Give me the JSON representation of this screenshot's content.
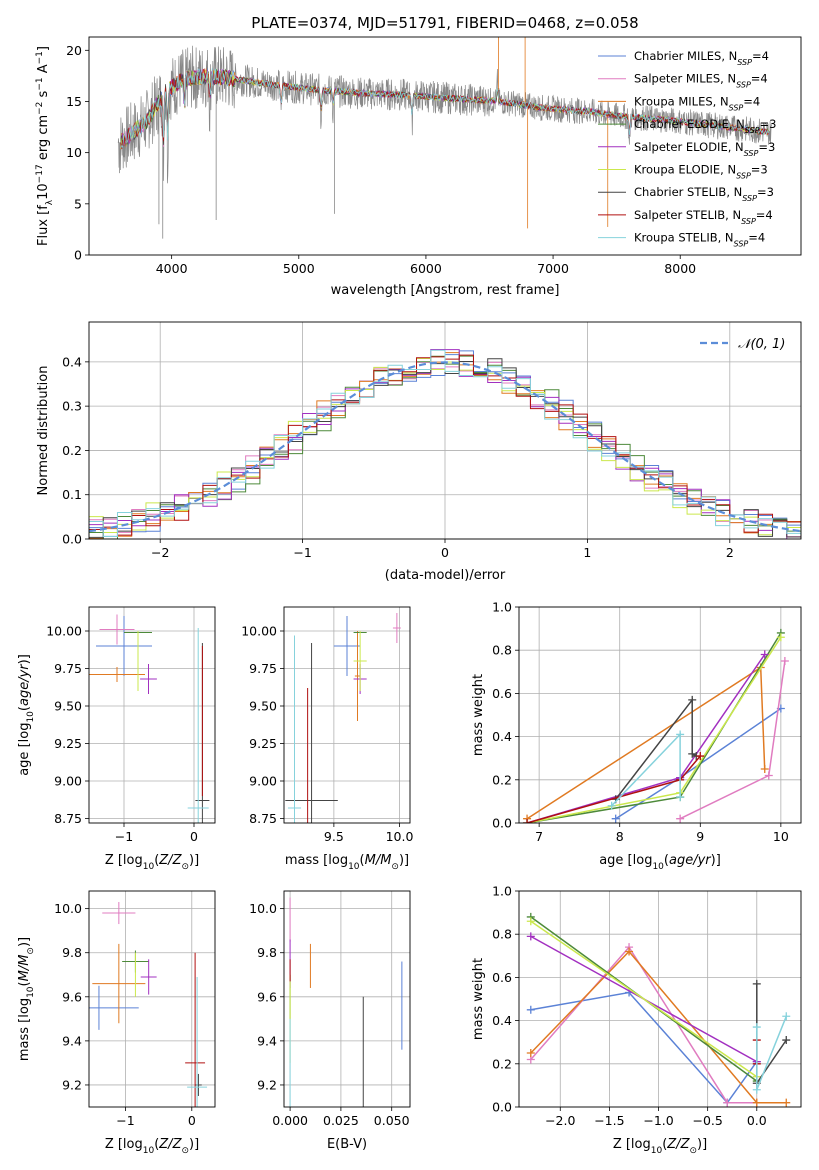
{
  "colors": {
    "cm": "#5b82d6",
    "sm": "#e07cc0",
    "km": "#e07a22",
    "ce": "#4d8a3a",
    "se": "#a230c0",
    "ke": "#cbe84c",
    "cs": "#444444",
    "ss": "#b01010",
    "ks": "#86d2dc",
    "data": "#888888",
    "grid": "#b0b0b0",
    "normal": "#5b8dd8"
  },
  "legend": [
    {
      "key": "cm",
      "label": "Chabrier MILES, N",
      "sub": "SSP",
      "suffix": "=4"
    },
    {
      "key": "sm",
      "label": "Salpeter MILES, N",
      "sub": "SSP",
      "suffix": "=4"
    },
    {
      "key": "km",
      "label": "Kroupa MILES, N",
      "sub": "SSP",
      "suffix": "=4"
    },
    {
      "key": "ce",
      "label": "Chabrier ELODIE, N",
      "sub": "SSP",
      "suffix": "=3"
    },
    {
      "key": "se",
      "label": "Salpeter ELODIE, N",
      "sub": "SSP",
      "suffix": "=3"
    },
    {
      "key": "ke",
      "label": "Kroupa ELODIE, N",
      "sub": "SSP",
      "suffix": "=3"
    },
    {
      "key": "cs",
      "label": "Chabrier STELIB, N",
      "sub": "SSP",
      "suffix": "=3"
    },
    {
      "key": "ss",
      "label": "Salpeter STELIB, N",
      "sub": "SSP",
      "suffix": "=4"
    },
    {
      "key": "ks",
      "label": "Kroupa STELIB, N",
      "sub": "SSP",
      "suffix": "=4"
    }
  ],
  "chart_data": [
    {
      "id": "spectrum",
      "type": "line",
      "title": "PLATE=0374, MJD=51791, FIBERID=0468, z=0.058",
      "xlabel": "wavelength [Angstrom, rest frame]",
      "ylabel_parts": [
        "Flux [f",
        "λ",
        "10",
        "−17",
        " erg cm",
        "−2",
        " s",
        "−1",
        " A",
        "−1",
        "]"
      ],
      "xlim": [
        3350,
        8950
      ],
      "ylim": [
        0,
        21.3
      ],
      "xticks": [
        4000,
        5000,
        6000,
        7000,
        8000
      ],
      "yticks": [
        0,
        5,
        10,
        15,
        20
      ],
      "continuum_x": [
        3600,
        3800,
        3950,
        4100,
        4300,
        4500,
        4700,
        4900,
        5100,
        5300,
        5500,
        5700,
        5900,
        6100,
        6300,
        6500,
        6700,
        6900,
        7100,
        7300,
        7500,
        7700,
        7900,
        8100,
        8300,
        8500,
        8700
      ],
      "continuum_y": [
        11,
        13,
        16,
        17.2,
        17.5,
        17.2,
        16.8,
        16.5,
        16.2,
        16.0,
        15.8,
        15.7,
        15.6,
        15.4,
        15.2,
        15.1,
        14.8,
        14.4,
        14.2,
        14.0,
        13.6,
        13.4,
        13.2,
        12.9,
        12.6,
        12.3,
        12.0
      ]
    },
    {
      "id": "residuals",
      "type": "step",
      "xlabel": "(data-model)/error",
      "ylabel": "Normed distribution",
      "xlim": [
        -2.5,
        2.5
      ],
      "ylim": [
        0,
        0.49
      ],
      "xticks": [
        -2,
        -1,
        0,
        1,
        2
      ],
      "yticks": [
        0.0,
        0.1,
        0.2,
        0.3,
        0.4
      ],
      "normal_label": "𝒩(0, 1)"
    },
    {
      "id": "age-vs-Z",
      "type": "errorbar",
      "xlabel": "Z [log10(Z/Z⊙)]",
      "ylabel": "age  [log10(age/yr)]",
      "xlim": [
        -1.5,
        0.3
      ],
      "ylim": [
        8.72,
        10.16
      ],
      "xticks": [
        -1,
        0
      ],
      "yticks": [
        8.75,
        9.0,
        9.25,
        9.5,
        9.75,
        10.0
      ],
      "points": [
        {
          "key": "cm",
          "x": -1.0,
          "y": 9.9,
          "xerr": 0.4,
          "yerr": 0.2
        },
        {
          "key": "sm",
          "x": -1.1,
          "y": 10.01,
          "xerr": 0.25,
          "yerr": 0.1
        },
        {
          "key": "km",
          "x": -1.1,
          "y": 9.71,
          "xerr": 0.4,
          "yerr": 0.05
        },
        {
          "key": "ce",
          "x": -0.8,
          "y": 9.99,
          "xerr": 0.2,
          "yerr": 0.0
        },
        {
          "key": "se",
          "x": -0.65,
          "y": 9.68,
          "xerr": 0.12,
          "yerr": 0.1
        },
        {
          "key": "ke",
          "x": -0.8,
          "y": 9.8,
          "xerr": 0.0,
          "yerr": 0.2
        },
        {
          "key": "cs",
          "x": 0.12,
          "y": 8.87,
          "xerr": 0.1,
          "yerr": 1.05
        },
        {
          "key": "ss",
          "x": 0.12,
          "y": 9.4,
          "xerr": 0.0,
          "yerr": 0.5
        },
        {
          "key": "ks",
          "x": 0.06,
          "y": 8.82,
          "xerr": 0.15,
          "yerr": 1.2
        }
      ]
    },
    {
      "id": "age-vs-mass",
      "type": "errorbar",
      "xlabel": "mass [log10(M/M⊙)]",
      "ylabel": "",
      "xlim": [
        9.12,
        10.08
      ],
      "ylim": [
        8.72,
        10.16
      ],
      "xticks": [
        9.5,
        10.0
      ],
      "yticks": [
        8.75,
        9.0,
        9.25,
        9.5,
        9.75,
        10.0
      ],
      "points": [
        {
          "key": "cm",
          "x": 9.6,
          "y": 9.9,
          "xerr": 0.1,
          "yerr": 0.2
        },
        {
          "key": "sm",
          "x": 9.98,
          "y": 10.02,
          "xerr": 0.03,
          "yerr": 0.1
        },
        {
          "key": "km",
          "x": 9.68,
          "y": 9.7,
          "xerr": 0.02,
          "yerr": 0.3
        },
        {
          "key": "ce",
          "x": 9.7,
          "y": 9.99,
          "xerr": 0.05,
          "yerr": 0.0
        },
        {
          "key": "se",
          "x": 9.7,
          "y": 9.68,
          "xerr": 0.05,
          "yerr": 0.1
        },
        {
          "key": "ke",
          "x": 9.7,
          "y": 9.8,
          "xerr": 0.05,
          "yerr": 0.2
        },
        {
          "key": "cs",
          "x": 9.33,
          "y": 8.87,
          "xerr": 0.2,
          "yerr": 1.05
        },
        {
          "key": "ss",
          "x": 9.3,
          "y": 8.82,
          "xerr": 0.0,
          "yerr": 0.8
        },
        {
          "key": "ks",
          "x": 9.2,
          "y": 8.82,
          "xerr": 0.05,
          "yerr": 1.15
        }
      ]
    },
    {
      "id": "massweight-vs-age",
      "type": "line",
      "xlabel": "age  [log10(age/yr)]",
      "ylabel": "mass weight",
      "xlim": [
        6.75,
        10.25
      ],
      "ylim": [
        0,
        1.0
      ],
      "xticks": [
        7,
        8,
        9,
        10
      ],
      "yticks": [
        0.0,
        0.2,
        0.4,
        0.6,
        0.8,
        1.0
      ],
      "series": [
        {
          "key": "cm",
          "x": [
            7.95,
            8.75,
            10.0
          ],
          "y": [
            0.02,
            0.21,
            0.53
          ]
        },
        {
          "key": "sm",
          "x": [
            8.75,
            9.85,
            10.05
          ],
          "y": [
            0.02,
            0.22,
            0.75
          ]
        },
        {
          "key": "km",
          "x": [
            6.85,
            9.75,
            9.8
          ],
          "y": [
            0.02,
            0.72,
            0.25
          ]
        },
        {
          "key": "ce",
          "x": [
            6.85,
            8.75,
            10.0
          ],
          "y": [
            0.0,
            0.12,
            0.88
          ]
        },
        {
          "key": "se",
          "x": [
            6.85,
            8.75,
            9.8
          ],
          "y": [
            0.0,
            0.21,
            0.78
          ]
        },
        {
          "key": "ke",
          "x": [
            6.85,
            8.75,
            10.0
          ],
          "y": [
            0.0,
            0.14,
            0.86
          ]
        },
        {
          "key": "cs",
          "x": [
            7.95,
            8.9,
            8.9,
            8.95
          ],
          "y": [
            0.11,
            0.57,
            0.32,
            0.31
          ]
        },
        {
          "key": "ss",
          "x": [
            6.85,
            8.75,
            9.0
          ],
          "y": [
            0.0,
            0.2,
            0.31
          ]
        },
        {
          "key": "ks",
          "x": [
            7.9,
            8.75,
            8.75
          ],
          "y": [
            0.08,
            0.41,
            0.12
          ]
        }
      ]
    },
    {
      "id": "mass-vs-Z",
      "type": "errorbar",
      "xlabel": "Z [log10(Z/Z⊙)]",
      "ylabel": "mass [log10(M/M⊙)]",
      "xlim": [
        -1.55,
        0.35
      ],
      "ylim": [
        9.1,
        10.08
      ],
      "xticks": [
        -1,
        0
      ],
      "yticks": [
        9.2,
        9.4,
        9.6,
        9.8,
        10.0
      ],
      "points": [
        {
          "key": "cm",
          "x": -1.4,
          "y": 9.55,
          "xerr": 0.6,
          "yerr": 0.1
        },
        {
          "key": "sm",
          "x": -1.1,
          "y": 9.98,
          "xerr": 0.25,
          "yerr": 0.05
        },
        {
          "key": "km",
          "x": -1.1,
          "y": 9.66,
          "xerr": 0.4,
          "yerr": 0.18
        },
        {
          "key": "ce",
          "x": -0.85,
          "y": 9.76,
          "xerr": 0.2,
          "yerr": 0.05
        },
        {
          "key": "se",
          "x": -0.65,
          "y": 9.69,
          "xerr": 0.12,
          "yerr": 0.08
        },
        {
          "key": "ke",
          "x": -0.85,
          "y": 9.7,
          "xerr": 0.0,
          "yerr": 0.1
        },
        {
          "key": "cs",
          "x": 0.1,
          "y": 9.2,
          "xerr": 0.05,
          "yerr": 0.05
        },
        {
          "key": "ss",
          "x": 0.05,
          "y": 9.3,
          "xerr": 0.15,
          "yerr": 0.5
        },
        {
          "key": "ks",
          "x": 0.08,
          "y": 9.19,
          "xerr": 0.15,
          "yerr": 0.5
        }
      ]
    },
    {
      "id": "mass-vs-EBV",
      "type": "errorbar",
      "xlabel": "E(B-V)",
      "ylabel": "",
      "xlim": [
        -0.003,
        0.059
      ],
      "ylim": [
        9.1,
        10.08
      ],
      "xticks": [
        0.0,
        0.025,
        0.05
      ],
      "yticks": [
        9.2,
        9.4,
        9.6,
        9.8,
        10.0
      ],
      "points": [
        {
          "key": "cm",
          "x": 0.055,
          "y": 9.56,
          "xerr": 0,
          "yerr": 0.2
        },
        {
          "key": "sm",
          "x": 0.0,
          "y": 9.95,
          "xerr": 0,
          "yerr": 0.1
        },
        {
          "key": "km",
          "x": 0.01,
          "y": 9.74,
          "xerr": 0,
          "yerr": 0.1
        },
        {
          "key": "ce",
          "x": 0.0,
          "y": 9.6,
          "xerr": 0,
          "yerr": 0.1
        },
        {
          "key": "se",
          "x": 0.0,
          "y": 9.75,
          "xerr": 0,
          "yerr": 0.11
        },
        {
          "key": "ke",
          "x": 0.0,
          "y": 9.5,
          "xerr": 0,
          "yerr": 0.2
        },
        {
          "key": "cs",
          "x": 0.036,
          "y": 9.3,
          "xerr": 0,
          "yerr": 0.3
        },
        {
          "key": "ss",
          "x": 0.0,
          "y": 9.72,
          "xerr": 0,
          "yerr": 0.05
        },
        {
          "key": "ks",
          "x": 0.0,
          "y": 9.2,
          "xerr": 0,
          "yerr": 0.3
        }
      ]
    },
    {
      "id": "massweight-vs-Z",
      "type": "line",
      "xlabel": "Z [log10(Z/Z⊙)]",
      "ylabel": "mass weight",
      "xlim": [
        -2.42,
        0.45
      ],
      "ylim": [
        0,
        1.0
      ],
      "xticks": [
        -2.0,
        -1.5,
        -1.0,
        -0.5,
        0.0
      ],
      "yticks": [
        0.0,
        0.2,
        0.4,
        0.6,
        0.8,
        1.0
      ],
      "series": [
        {
          "key": "cm",
          "x": [
            -2.3,
            -1.3,
            -0.3,
            0.0
          ],
          "y": [
            0.45,
            0.53,
            0.02,
            0.21
          ]
        },
        {
          "key": "sm",
          "x": [
            -2.3,
            -1.3,
            -0.3,
            0.0
          ],
          "y": [
            0.22,
            0.74,
            0.02,
            0.02
          ]
        },
        {
          "key": "km",
          "x": [
            -2.3,
            -1.3,
            0.0,
            0.3
          ],
          "y": [
            0.25,
            0.72,
            0.02,
            0.02
          ]
        },
        {
          "key": "ce",
          "x": [
            -2.3,
            0.0
          ],
          "y": [
            0.88,
            0.12
          ]
        },
        {
          "key": "se",
          "x": [
            -2.3,
            0.0
          ],
          "y": [
            0.79,
            0.21
          ]
        },
        {
          "key": "ke",
          "x": [
            -2.3,
            0.0
          ],
          "y": [
            0.86,
            0.14
          ]
        },
        {
          "key": "cs",
          "x": [
            0.0,
            0.0,
            0.3
          ],
          "y": [
            0.57,
            0.11,
            0.31
          ]
        },
        {
          "key": "ss",
          "x": [
            0.0,
            0.0
          ],
          "y": [
            0.2,
            0.31
          ]
        },
        {
          "key": "ks",
          "x": [
            0.0,
            0.0,
            0.3
          ],
          "y": [
            0.37,
            0.08,
            0.42
          ]
        }
      ]
    }
  ]
}
